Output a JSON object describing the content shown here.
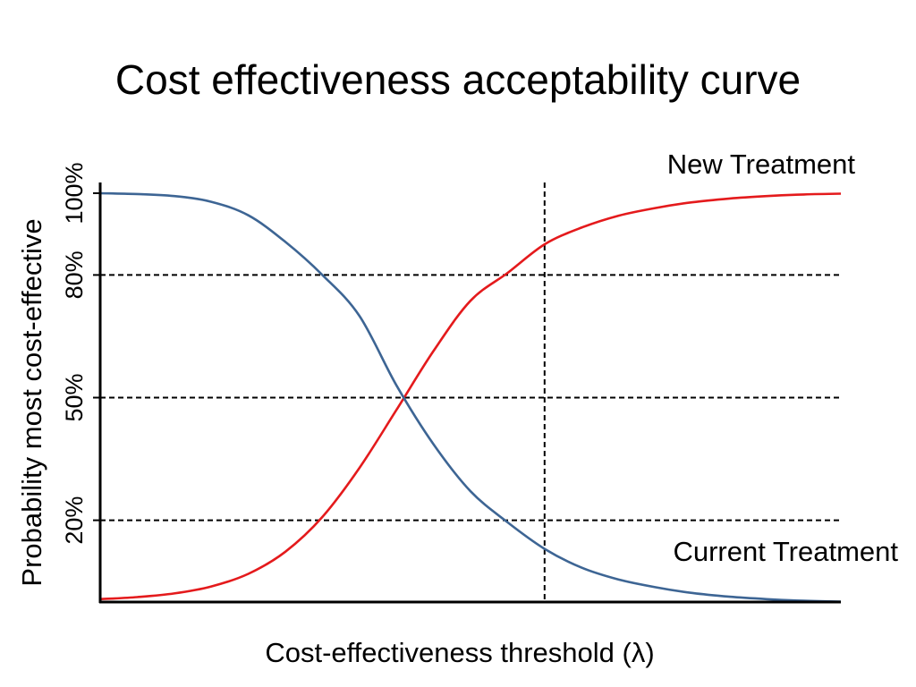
{
  "title": "Cost effectiveness acceptability curve",
  "chart_data": {
    "type": "line",
    "title": "Cost effectiveness acceptability curve",
    "xlabel": "Cost-effectiveness threshold (λ)",
    "ylabel": "Probability most cost-effective",
    "x_ticks": [],
    "y_ticks": [
      "20%",
      "50%",
      "80%",
      "100%"
    ],
    "y_tick_values": [
      20,
      50,
      80,
      100
    ],
    "xlim": [
      0,
      100
    ],
    "ylim": [
      0,
      100
    ],
    "grid": false,
    "reference_lines": {
      "horizontal": [
        20,
        50,
        80
      ],
      "vertical": [
        60
      ],
      "style": "dashed"
    },
    "x": [
      0,
      5,
      10,
      15,
      20,
      25,
      30,
      35,
      40,
      45,
      50,
      55,
      60,
      65,
      70,
      75,
      80,
      85,
      90,
      95,
      100
    ],
    "series": [
      {
        "name": "New Treatment",
        "color": "#e41a1c",
        "values": [
          0.7,
          1.2,
          2.1,
          3.8,
          6.9,
          12.3,
          20.8,
          32.8,
          47.0,
          61.4,
          73.7,
          80.5,
          87.5,
          91.6,
          94.5,
          96.4,
          97.8,
          98.7,
          99.3,
          99.7,
          99.9
        ]
      },
      {
        "name": "Current Treatment",
        "color": "#3d6594",
        "values": [
          100.0,
          99.8,
          99.3,
          97.9,
          94.6,
          88.1,
          80.0,
          70.0,
          53.0,
          38.6,
          27.1,
          19.5,
          13.0,
          8.4,
          5.5,
          3.6,
          2.2,
          1.3,
          0.7,
          0.3,
          0.1
        ]
      }
    ]
  }
}
